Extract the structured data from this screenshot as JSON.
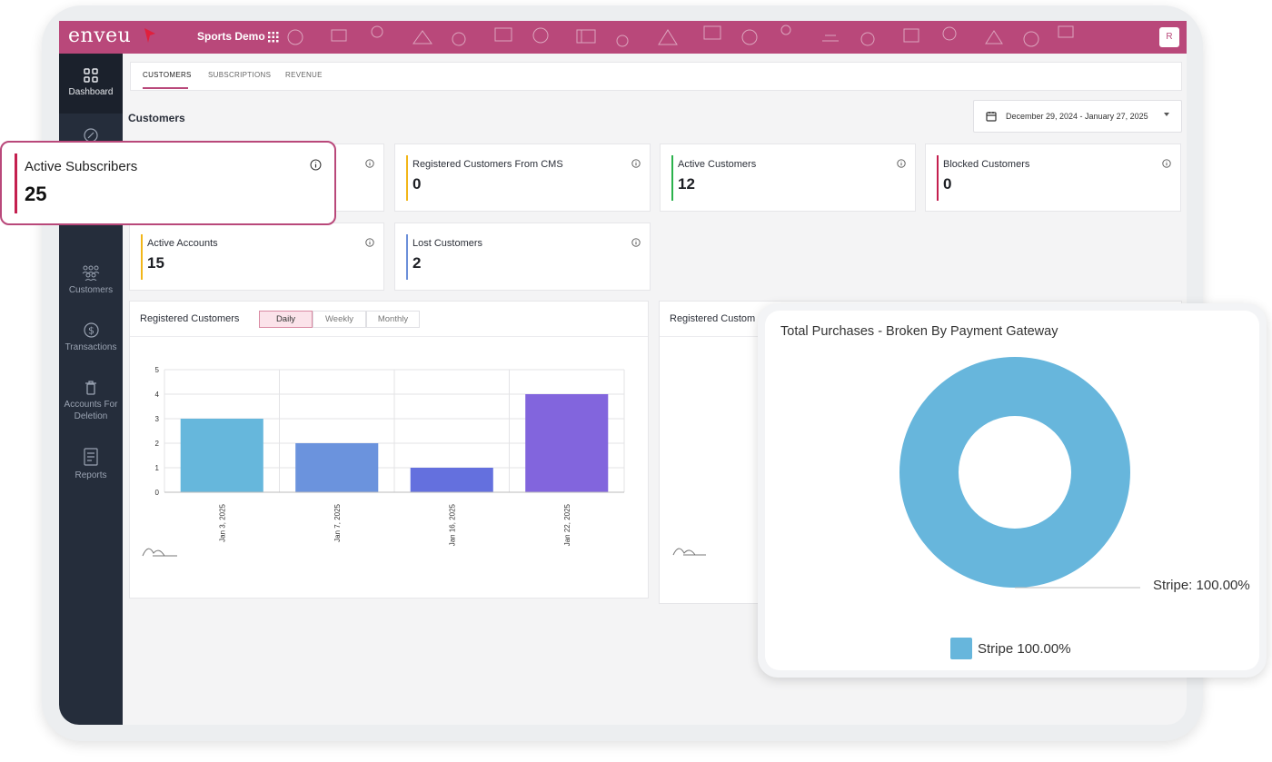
{
  "header": {
    "logo": "enveu",
    "app_title": "Sports Demo",
    "avatar_initial": "R",
    "brand_color": "#b9487a"
  },
  "sidebar": {
    "items": [
      {
        "label": "Dashboard",
        "icon": "grid-icon",
        "active": true
      },
      {
        "label": "",
        "icon": "percent-icon"
      },
      {
        "label": "Customers",
        "icon": "users-icon"
      },
      {
        "label": "Transactions",
        "icon": "dollar-icon"
      },
      {
        "label": "Accounts For Deletion",
        "icon": "trash-icon"
      },
      {
        "label": "Reports",
        "icon": "report-icon"
      }
    ]
  },
  "tabs": [
    {
      "label": "CUSTOMERS",
      "active": true
    },
    {
      "label": "SUBSCRIPTIONS"
    },
    {
      "label": "REVENUE"
    }
  ],
  "section_title": "Customers",
  "date_range": "December 29, 2024 - January 27, 2025",
  "cards": [
    {
      "label": "Active Subscribers",
      "value": "25",
      "color": "#c41f4f"
    },
    {
      "label": "Registered Customers From CMS",
      "value": "0",
      "color": "#f2b619"
    },
    {
      "label": "Active Customers",
      "value": "12",
      "color": "#2bb24c"
    },
    {
      "label": "Blocked Customers",
      "value": "0",
      "color": "#c41f4f"
    },
    {
      "label": "Active Accounts",
      "value": "15",
      "color": "#f2b619"
    },
    {
      "label": "Lost Customers",
      "value": "2",
      "color": "#6c8fd9"
    }
  ],
  "registered_panel": {
    "title": "Registered Customers",
    "segments": [
      "Daily",
      "Weekly",
      "Monthly"
    ],
    "active_segment": "Daily"
  },
  "right_panel": {
    "title": "Registered Custom"
  },
  "chart_data": [
    {
      "type": "bar",
      "categories": [
        "Jan 3, 2025",
        "Jan 7, 2025",
        "Jan 16, 2025",
        "Jan 22, 2025"
      ],
      "values": [
        3,
        2,
        1,
        4
      ],
      "colors": [
        "#66b7dc",
        "#6b93dd",
        "#6470de",
        "#8265dd"
      ],
      "yticks": [
        "0",
        "1",
        "2",
        "3",
        "4",
        "5"
      ],
      "ylim": [
        0,
        5
      ],
      "grid": true
    },
    {
      "type": "pie",
      "title": "Total Purchases - Broken By Payment Gateway",
      "slices": [
        {
          "label": "Stripe",
          "value": 100.0,
          "color": "#67b6dc"
        }
      ],
      "callout": "Stripe: 100.00%",
      "legend": "Stripe  100.00%",
      "legend_position": "bottom"
    }
  ]
}
